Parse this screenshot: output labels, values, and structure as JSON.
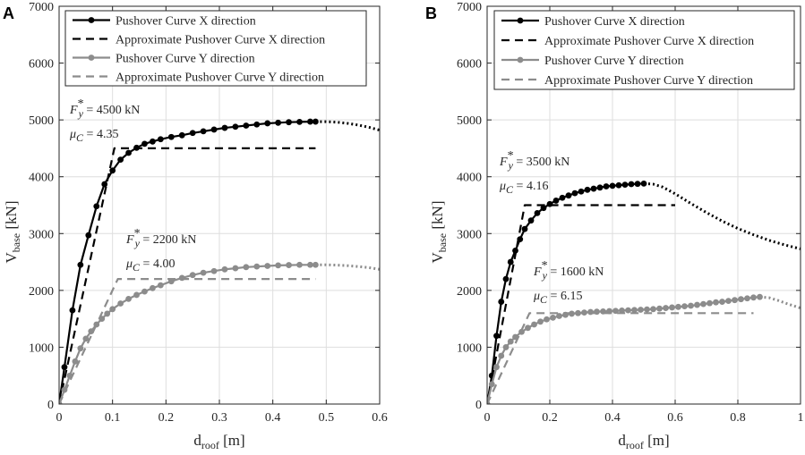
{
  "colors": {
    "x_series": "#000000",
    "y_series": "#8c8c8c",
    "grid": "#dedede",
    "axis": "#262626"
  },
  "chart_data": [
    {
      "type": "line",
      "panel": "A",
      "xlabel": "d",
      "xlabel_sub": "roof",
      "xlabel_unit": " [m]",
      "ylabel": "V",
      "ylabel_sub": "base",
      "ylabel_unit": " [kN]",
      "xlim": [
        0,
        0.6
      ],
      "ylim": [
        0,
        7000
      ],
      "xticks": [
        0,
        0.1,
        0.2,
        0.3,
        0.4,
        0.5,
        0.6
      ],
      "xtick_labels": [
        "0",
        "0.1",
        "0.2",
        "0.3",
        "0.4",
        "0.5",
        "0.6"
      ],
      "yticks": [
        0,
        1000,
        2000,
        3000,
        4000,
        5000,
        6000,
        7000
      ],
      "ytick_labels": [
        "0",
        "1000",
        "2000",
        "3000",
        "4000",
        "5000",
        "6000",
        "7000"
      ],
      "grid": true,
      "legend_position": "top-right",
      "series": [
        {
          "name": "Pushover Curve X direction",
          "style": "solid-marker",
          "color": "#000000",
          "x": [
            0,
            0.01,
            0.025,
            0.04,
            0.055,
            0.07,
            0.085,
            0.1,
            0.115,
            0.13,
            0.145,
            0.16,
            0.175,
            0.19,
            0.21,
            0.23,
            0.25,
            0.27,
            0.29,
            0.31,
            0.33,
            0.35,
            0.37,
            0.39,
            0.41,
            0.43,
            0.45,
            0.47,
            0.48
          ],
          "y": [
            0,
            650,
            1650,
            2450,
            2970,
            3480,
            3870,
            4110,
            4300,
            4420,
            4510,
            4580,
            4620,
            4660,
            4700,
            4730,
            4770,
            4800,
            4830,
            4860,
            4880,
            4900,
            4920,
            4940,
            4950,
            4960,
            4965,
            4970,
            4970
          ]
        },
        {
          "name": "Pushover Curve X continuation",
          "style": "dotted",
          "color": "#000000",
          "legend": false,
          "x": [
            0.48,
            0.5,
            0.52,
            0.54,
            0.56,
            0.58,
            0.6
          ],
          "y": [
            4970,
            4970,
            4960,
            4940,
            4910,
            4870,
            4820
          ]
        },
        {
          "name": "Approximate Pushover Curve X direction",
          "style": "dashed",
          "color": "#000000",
          "x": [
            0,
            0.1034,
            0.48
          ],
          "y": [
            0,
            4500,
            4500
          ]
        },
        {
          "name": "Pushover Curve Y direction",
          "style": "solid-marker",
          "color": "#8c8c8c",
          "x": [
            0,
            0.01,
            0.02,
            0.03,
            0.04,
            0.05,
            0.06,
            0.07,
            0.08,
            0.09,
            0.1,
            0.115,
            0.13,
            0.145,
            0.16,
            0.175,
            0.19,
            0.21,
            0.23,
            0.25,
            0.27,
            0.29,
            0.31,
            0.33,
            0.35,
            0.37,
            0.39,
            0.41,
            0.43,
            0.45,
            0.47,
            0.48
          ],
          "y": [
            0,
            250,
            500,
            750,
            980,
            1150,
            1280,
            1400,
            1500,
            1590,
            1670,
            1770,
            1850,
            1920,
            1980,
            2040,
            2090,
            2160,
            2220,
            2270,
            2310,
            2340,
            2370,
            2390,
            2410,
            2420,
            2430,
            2440,
            2445,
            2450,
            2450,
            2450
          ]
        },
        {
          "name": "Pushover Curve Y continuation",
          "style": "dotted",
          "color": "#8c8c8c",
          "legend": false,
          "x": [
            0.48,
            0.5,
            0.52,
            0.54,
            0.56,
            0.58,
            0.6
          ],
          "y": [
            2450,
            2450,
            2445,
            2435,
            2420,
            2400,
            2370
          ]
        },
        {
          "name": "Approximate Pushover Curve Y direction",
          "style": "dashed",
          "color": "#8c8c8c",
          "x": [
            0,
            0.11,
            0.48
          ],
          "y": [
            0,
            2200,
            2200
          ]
        }
      ],
      "annotations": [
        {
          "fy": "= 4500 kN",
          "mu": "= 4.35",
          "at_x": 0.09,
          "at_y": 4940
        },
        {
          "fy": "= 2200 kN",
          "mu": "= 4.00",
          "at_x": 0.07,
          "at_y": 2700
        }
      ]
    },
    {
      "type": "line",
      "panel": "B",
      "xlabel": "d",
      "xlabel_sub": "roof",
      "xlabel_unit": " [m]",
      "ylabel": "V",
      "ylabel_sub": "base",
      "ylabel_unit": " [kN]",
      "xlim": [
        0,
        1
      ],
      "ylim": [
        0,
        7000
      ],
      "xticks": [
        0,
        0.2,
        0.4,
        0.6,
        0.8,
        1
      ],
      "xtick_labels": [
        "0",
        "0.2",
        "0.4",
        "0.6",
        "0.8",
        "1"
      ],
      "yticks": [
        0,
        1000,
        2000,
        3000,
        4000,
        5000,
        6000,
        7000
      ],
      "ytick_labels": [
        "0",
        "1000",
        "2000",
        "3000",
        "4000",
        "5000",
        "6000",
        "7000"
      ],
      "grid": true,
      "legend_position": "top-right",
      "series": [
        {
          "name": "Pushover Curve X direction",
          "style": "solid-marker",
          "color": "#000000",
          "x": [
            0,
            0.015,
            0.03,
            0.045,
            0.06,
            0.075,
            0.09,
            0.105,
            0.12,
            0.14,
            0.16,
            0.18,
            0.2,
            0.22,
            0.24,
            0.26,
            0.28,
            0.3,
            0.32,
            0.34,
            0.36,
            0.38,
            0.4,
            0.42,
            0.44,
            0.46,
            0.48,
            0.5
          ],
          "y": [
            0,
            500,
            1200,
            1800,
            2200,
            2500,
            2700,
            2900,
            3080,
            3230,
            3360,
            3450,
            3520,
            3580,
            3630,
            3670,
            3710,
            3740,
            3770,
            3790,
            3810,
            3830,
            3840,
            3850,
            3860,
            3870,
            3875,
            3880
          ]
        },
        {
          "name": "Pushover Curve X continuation",
          "style": "dotted",
          "color": "#000000",
          "legend": false,
          "x": [
            0.5,
            0.53,
            0.56,
            0.6,
            0.65,
            0.7,
            0.75,
            0.8,
            0.85,
            0.9,
            0.95,
            1.0
          ],
          "y": [
            3880,
            3870,
            3820,
            3700,
            3530,
            3370,
            3220,
            3090,
            2980,
            2880,
            2800,
            2730
          ]
        },
        {
          "name": "Approximate Pushover Curve X direction",
          "style": "dashed",
          "color": "#000000",
          "x": [
            0,
            0.12,
            0.6
          ],
          "y": [
            0,
            3500,
            3500
          ]
        },
        {
          "name": "Pushover Curve Y direction",
          "style": "solid-marker",
          "color": "#8c8c8c",
          "x": [
            0,
            0.015,
            0.03,
            0.045,
            0.06,
            0.075,
            0.09,
            0.11,
            0.13,
            0.15,
            0.17,
            0.19,
            0.21,
            0.23,
            0.25,
            0.27,
            0.29,
            0.31,
            0.33,
            0.35,
            0.37,
            0.39,
            0.41,
            0.43,
            0.45,
            0.47,
            0.49,
            0.51,
            0.53,
            0.55,
            0.57,
            0.59,
            0.61,
            0.63,
            0.65,
            0.67,
            0.69,
            0.71,
            0.73,
            0.75,
            0.77,
            0.79,
            0.81,
            0.83,
            0.85,
            0.87
          ],
          "y": [
            0,
            350,
            650,
            850,
            1000,
            1100,
            1180,
            1270,
            1340,
            1400,
            1450,
            1490,
            1520,
            1550,
            1570,
            1590,
            1600,
            1610,
            1620,
            1625,
            1630,
            1635,
            1640,
            1645,
            1650,
            1655,
            1660,
            1665,
            1670,
            1680,
            1690,
            1700,
            1710,
            1720,
            1730,
            1745,
            1760,
            1775,
            1790,
            1800,
            1815,
            1830,
            1845,
            1860,
            1875,
            1885
          ]
        },
        {
          "name": "Pushover Curve Y continuation",
          "style": "dotted",
          "color": "#8c8c8c",
          "legend": false,
          "x": [
            0.87,
            0.9,
            0.93,
            0.96,
            1.0
          ],
          "y": [
            1885,
            1870,
            1820,
            1760,
            1690
          ]
        },
        {
          "name": "Approximate Pushover Curve Y direction",
          "style": "dashed",
          "color": "#8c8c8c",
          "x": [
            0,
            0.135,
            0.85
          ],
          "y": [
            0,
            1600,
            1600
          ]
        }
      ],
      "annotations": [
        {
          "fy": "= 3500 kN",
          "mu": "= 4.16",
          "at_x": 0.06,
          "at_y": 4260
        },
        {
          "fy": "= 1600 kN",
          "mu": "= 6.15",
          "at_x": 0.16,
          "at_y": 2180
        }
      ]
    }
  ]
}
